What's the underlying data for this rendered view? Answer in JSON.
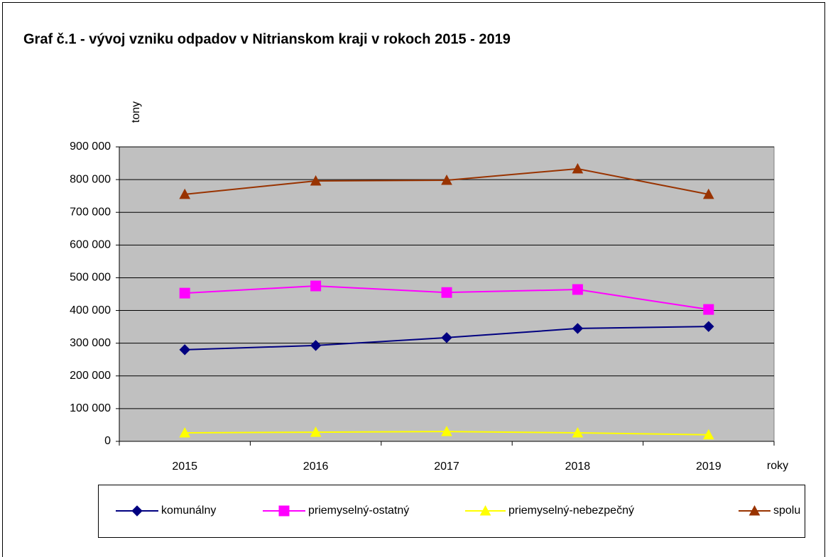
{
  "chart_data": {
    "type": "line",
    "title": "Graf č.1 - vývoj vzniku odpadov v Nitrianskom kraji v rokoch 2015 - 2019",
    "y_label": "tony",
    "x_label": "roky",
    "categories": [
      "2015",
      "2016",
      "2017",
      "2018",
      "2019"
    ],
    "series": [
      {
        "name": "komunálny",
        "color": "#000080",
        "marker": "diamond",
        "values": [
          280000,
          293000,
          317000,
          345000,
          351000
        ]
      },
      {
        "name": "priemyselný-ostatný",
        "color": "#ff00ff",
        "marker": "square",
        "values": [
          453000,
          475000,
          455000,
          464000,
          403000
        ]
      },
      {
        "name": "priemyselný-nebezpečný",
        "color": "#ffff00",
        "marker": "triangle",
        "values": [
          26000,
          28000,
          30000,
          26000,
          20000
        ]
      },
      {
        "name": "spolu",
        "color": "#993300",
        "marker": "triangle",
        "values": [
          755000,
          796000,
          798000,
          833000,
          755000
        ]
      }
    ],
    "ylim": [
      0,
      900000
    ],
    "yticks": [
      {
        "value": 0,
        "label": "0"
      },
      {
        "value": 100000,
        "label": "100 000"
      },
      {
        "value": 200000,
        "label": "200 000"
      },
      {
        "value": 300000,
        "label": "300 000"
      },
      {
        "value": 400000,
        "label": "400 000"
      },
      {
        "value": 500000,
        "label": "500 000"
      },
      {
        "value": 600000,
        "label": "600 000"
      },
      {
        "value": 700000,
        "label": "700 000"
      },
      {
        "value": 800000,
        "label": "800 000"
      },
      {
        "value": 900000,
        "label": "900 000"
      }
    ],
    "grid": true,
    "plot_background": "#c0c0c0",
    "legend": "bottom"
  }
}
